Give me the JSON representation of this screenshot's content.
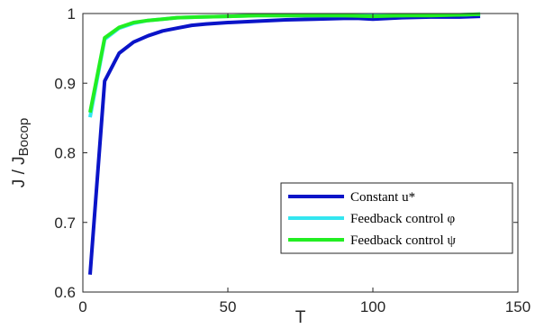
{
  "chart_data": {
    "type": "line",
    "xlabel": "T",
    "ylabel": "J / J",
    "ylabel_subscript": "Bocop",
    "xlim": [
      0,
      150
    ],
    "ylim": [
      0.6,
      1.0
    ],
    "xticks": [
      0,
      50,
      100,
      150
    ],
    "yticks": [
      0.6,
      0.7,
      0.8,
      0.9,
      1.0
    ],
    "grid": false,
    "legend_position": "bottom-right",
    "series": [
      {
        "name": "Constant u*",
        "color": "#0a14c8",
        "x": [
          2.5,
          7.5,
          12.5,
          17.5,
          22.5,
          27.5,
          32.5,
          37.5,
          42.5,
          50,
          60,
          70,
          80,
          90,
          95,
          100,
          110,
          120,
          130,
          137
        ],
        "y": [
          0.625,
          0.903,
          0.943,
          0.959,
          0.968,
          0.975,
          0.979,
          0.983,
          0.985,
          0.987,
          0.989,
          0.991,
          0.992,
          0.993,
          0.993,
          0.992,
          0.994,
          0.995,
          0.995,
          0.996
        ]
      },
      {
        "name": "Feedback control φ",
        "color": "#33e6f0",
        "x": [
          2.5,
          7.5,
          12.5,
          17.5,
          22.5,
          27.5,
          32.5,
          40,
          50,
          60,
          70,
          80,
          90,
          100,
          110,
          120,
          130,
          137
        ],
        "y": [
          0.851,
          0.963,
          0.979,
          0.986,
          0.99,
          0.992,
          0.994,
          0.995,
          0.996,
          0.997,
          0.997,
          0.997,
          0.997,
          0.997,
          0.997,
          0.998,
          0.998,
          0.999
        ]
      },
      {
        "name": "Feedback control ψ",
        "color": "#22ee22",
        "x": [
          2.5,
          7.5,
          12.5,
          17.5,
          22.5,
          27.5,
          32.5,
          40,
          50,
          60,
          70,
          80,
          90,
          100,
          110,
          120,
          130,
          137
        ],
        "y": [
          0.858,
          0.965,
          0.98,
          0.987,
          0.99,
          0.992,
          0.994,
          0.995,
          0.996,
          0.997,
          0.997,
          0.997,
          0.997,
          0.996,
          0.997,
          0.997,
          0.998,
          0.999
        ]
      }
    ]
  }
}
